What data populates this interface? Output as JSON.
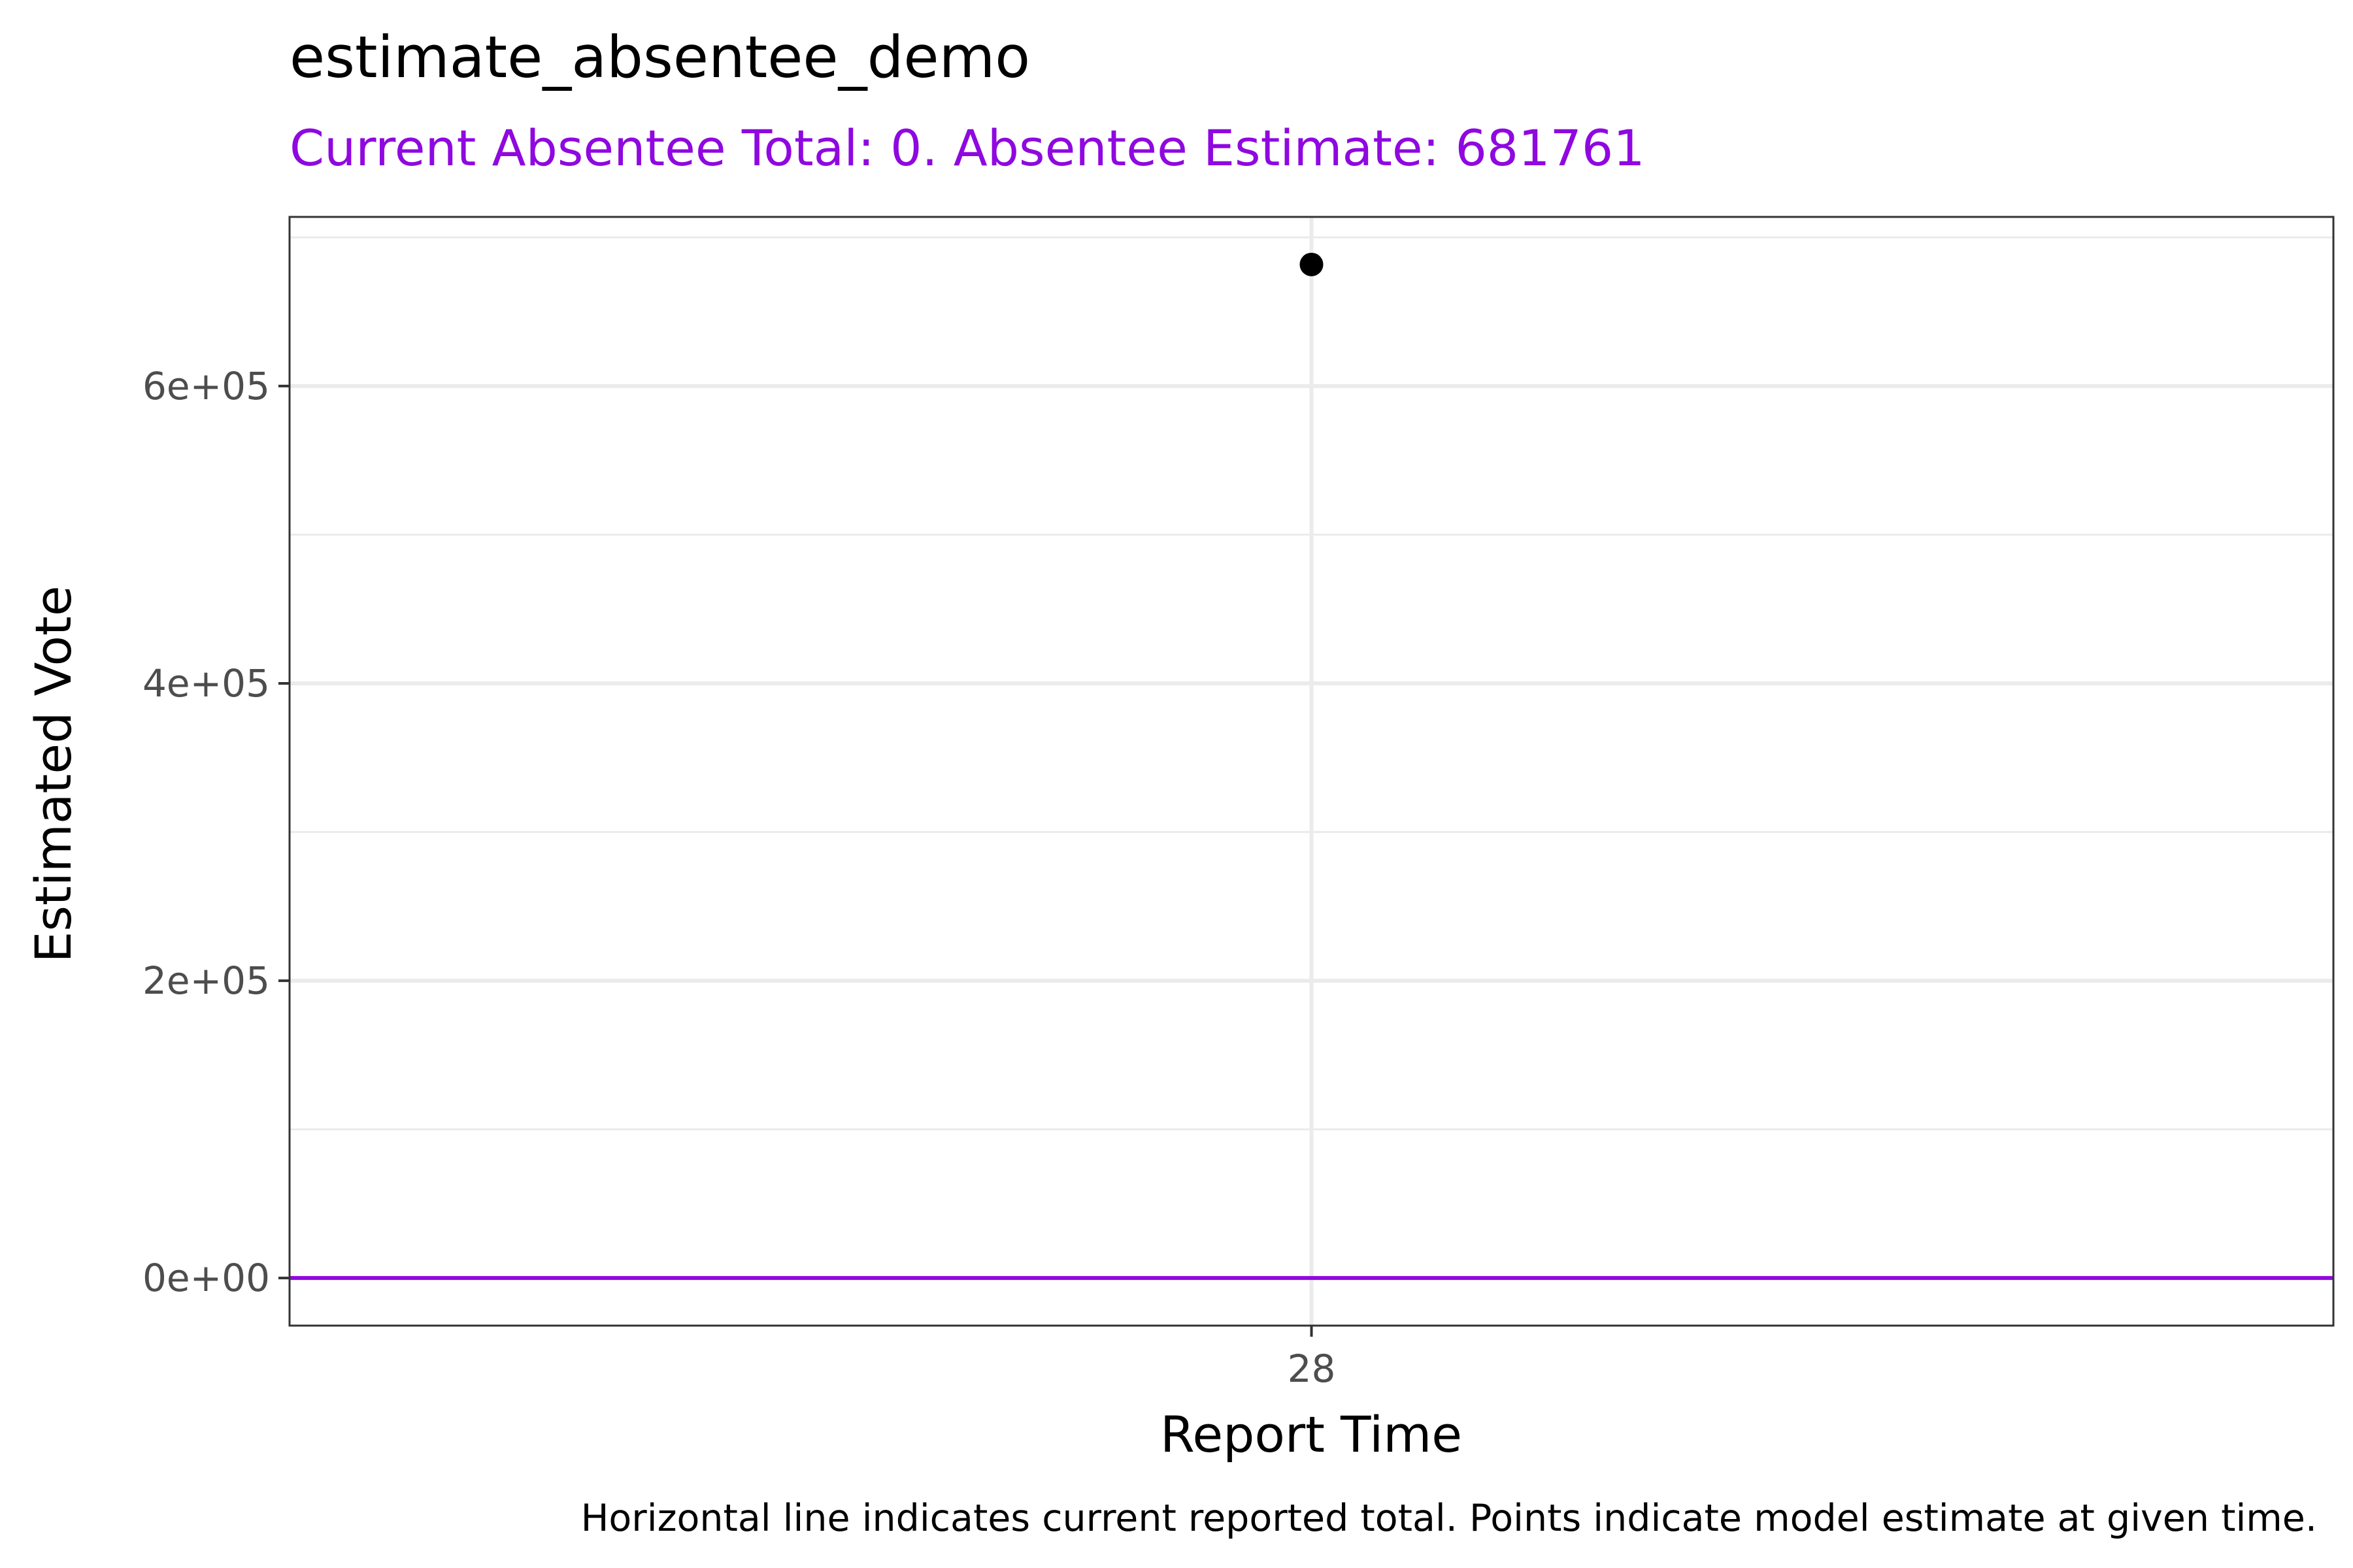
{
  "chart_data": {
    "type": "scatter",
    "title": "estimate_absentee_demo",
    "subtitle": "Current Absentee Total: 0. Absentee Estimate: 681761",
    "xlabel": "Report Time",
    "ylabel": "Estimated Vote",
    "caption": "Horizontal line indicates current reported total. Points indicate model estimate at given time.",
    "x_categories": [
      "28"
    ],
    "points": [
      {
        "x": "28",
        "y": 681761
      }
    ],
    "hline": {
      "y": 0,
      "color": "#8F08E0"
    },
    "ylim": [
      -32000,
      713761
    ],
    "y_ticks": [
      {
        "value": 0,
        "label": "0e+00"
      },
      {
        "value": 200000,
        "label": "2e+05"
      },
      {
        "value": 400000,
        "label": "4e+05"
      },
      {
        "value": 600000,
        "label": "6e+05"
      }
    ],
    "y_minor": [
      100000,
      300000,
      500000,
      700000
    ],
    "grid": true,
    "colors": {
      "point": "#000000",
      "grid": "#ebebeb",
      "panel_border": "#333333",
      "subtitle": "#8F08E0"
    }
  }
}
